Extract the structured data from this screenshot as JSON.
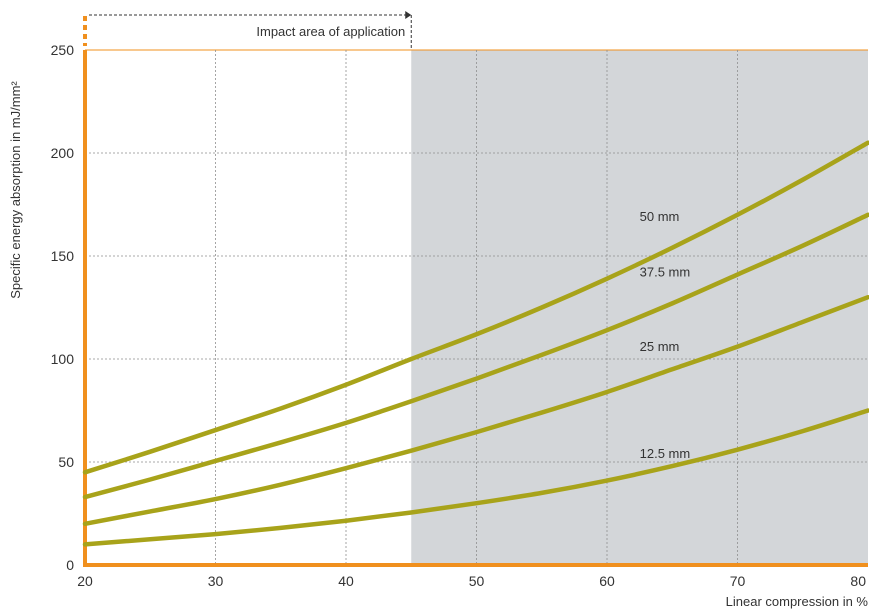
{
  "chart_data": {
    "type": "line",
    "xlabel": "Linear compression in %",
    "ylabel": "Specific energy absorption in mJ/mm²",
    "xlim": [
      20,
      80
    ],
    "ylim": [
      0,
      250
    ],
    "x_ticks": [
      20,
      30,
      40,
      50,
      60,
      70,
      80
    ],
    "y_ticks": [
      0,
      50,
      100,
      150,
      200,
      250
    ],
    "grid": true,
    "shaded_region": {
      "x_from": 45,
      "x_to": 80,
      "color": "#d3d6d9"
    },
    "annotation": {
      "text": "Impact area of application",
      "x_from": 20,
      "x_to": 45
    },
    "x": [
      20,
      25,
      30,
      35,
      40,
      45,
      50,
      55,
      60,
      65,
      70,
      75,
      80
    ],
    "series": [
      {
        "name": "50 mm",
        "values": [
          45,
          55,
          65.5,
          76,
          87.5,
          100,
          112,
          125,
          139,
          154,
          170,
          187,
          205
        ]
      },
      {
        "name": "37.5 mm",
        "values": [
          33,
          41.5,
          50.5,
          59.5,
          69,
          79.5,
          90.5,
          102,
          114,
          127,
          141,
          155,
          170
        ]
      },
      {
        "name": "25 mm",
        "values": [
          20,
          26,
          32,
          39,
          47,
          55.5,
          64.5,
          74,
          84,
          95,
          106,
          118,
          130
        ]
      },
      {
        "name": "12.5 mm",
        "values": [
          10,
          12.5,
          15,
          18,
          21.5,
          25.5,
          30,
          35,
          41,
          48,
          56,
          65,
          75
        ]
      }
    ],
    "series_label_positions": [
      {
        "x": 62.5,
        "y": 167
      },
      {
        "x": 62.5,
        "y": 140
      },
      {
        "x": 62.5,
        "y": 104
      },
      {
        "x": 62.5,
        "y": 52
      }
    ],
    "colors": {
      "line": "#a8a31a",
      "axis": "#f0901e",
      "grid": "#8f8f8f"
    }
  }
}
